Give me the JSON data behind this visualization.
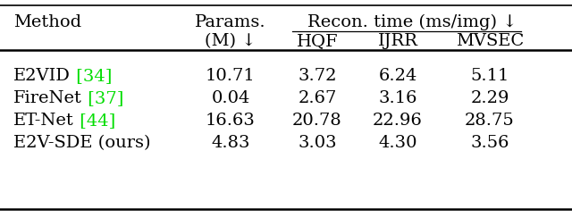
{
  "rows": [
    {
      "method": "E2VID",
      "cite": "[34]",
      "params": "10.71",
      "hqf": "3.72",
      "ijrr": "6.24",
      "mvsec": "5.11"
    },
    {
      "method": "FireNet",
      "cite": "[37]",
      "params": "0.04",
      "hqf": "2.67",
      "ijrr": "3.16",
      "mvsec": "2.29"
    },
    {
      "method": "ET-Net",
      "cite": "[44]",
      "params": "16.63",
      "hqf": "20.78",
      "ijrr": "22.96",
      "mvsec": "28.75"
    },
    {
      "method": "E2V-SDE (ours)",
      "cite": "",
      "params": "4.83",
      "hqf": "3.03",
      "ijrr": "4.30",
      "mvsec": "3.56"
    }
  ],
  "cite_color": "#00dd00",
  "text_color": "#000000",
  "bg_color": "#ffffff",
  "font_size": 14,
  "header_font_size": 14
}
